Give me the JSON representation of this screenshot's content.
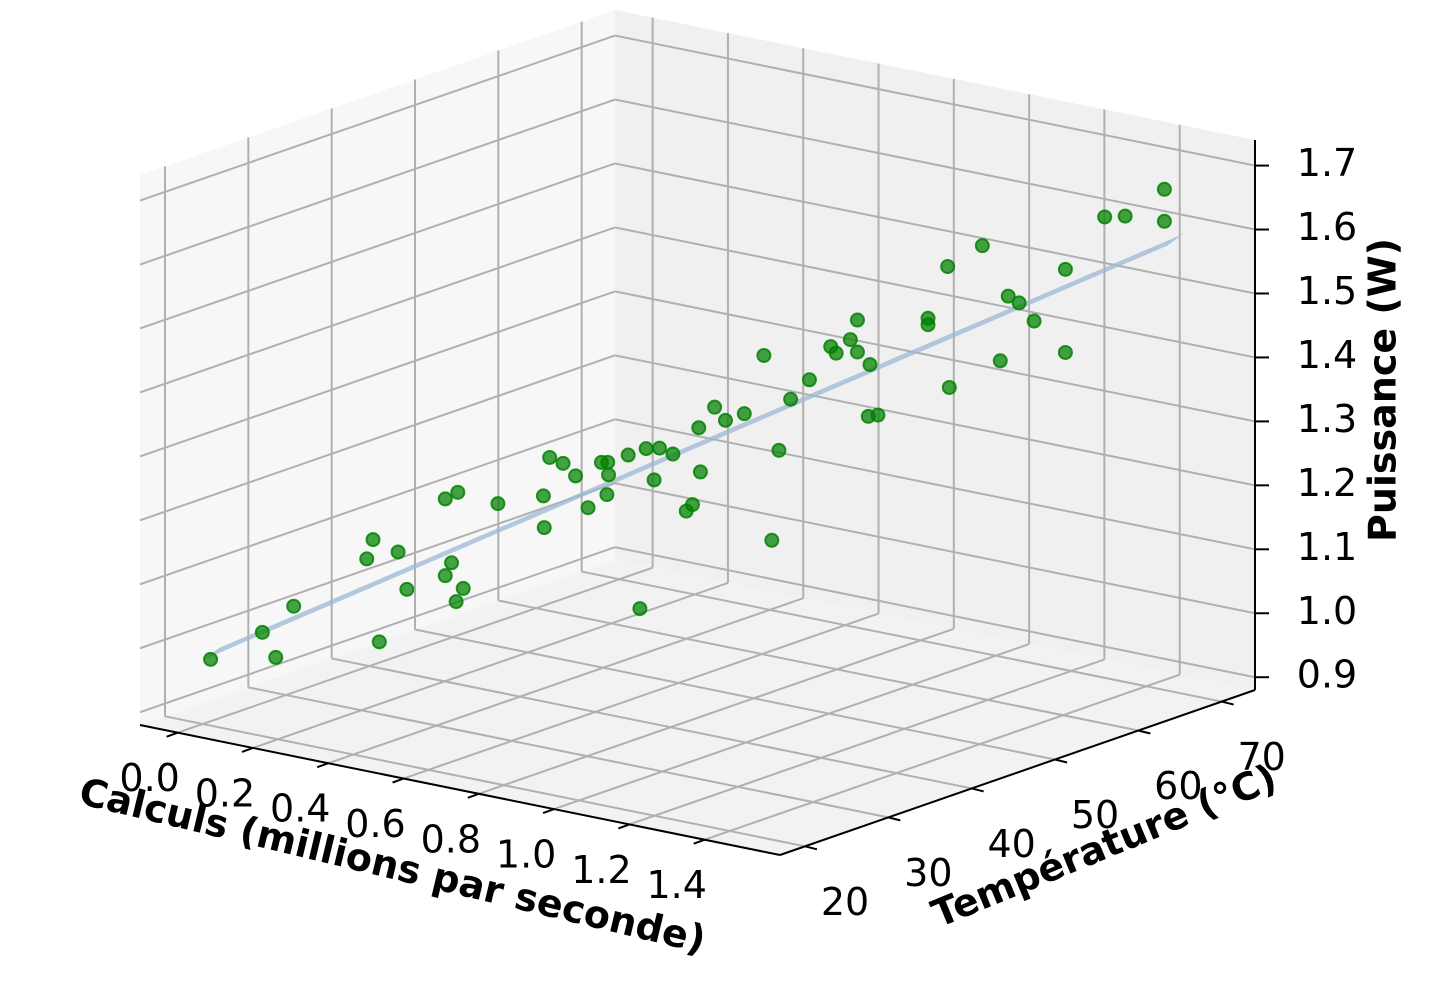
{
  "chart_data": {
    "type": "scatter3d",
    "xlabel": "Calculs (millions par seconde)",
    "ylabel": "Température (°C)",
    "zlabel": "Puissance (W)",
    "color": "#008000",
    "surface_color": "#9db8d4",
    "grid": true,
    "xlim": [
      -0.1,
      1.6
    ],
    "ylim": [
      17,
      74
    ],
    "zlim": [
      0.88,
      1.74
    ],
    "xticks": [
      {
        "value": 0,
        "label": "0.0"
      },
      0.2,
      0.4,
      0.6,
      0.8,
      {
        "value": 1,
        "label": "1.0"
      },
      1.2,
      1.4
    ],
    "yticks": [
      20,
      30,
      40,
      50,
      60,
      70
    ],
    "zticks": [
      0.9,
      {
        "value": 1,
        "label": "1.0"
      },
      1.1,
      1.2,
      1.3,
      1.4,
      1.5,
      1.6,
      1.7
    ],
    "x": [
      0.01,
      0.09,
      0.11,
      0.14,
      0.25,
      0.26,
      0.27,
      0.3,
      0.31,
      0.37,
      0.39,
      0.37,
      0.38,
      0.39,
      0.4,
      0.45,
      0.52,
      0.52,
      0.53,
      0.55,
      0.57,
      0.59,
      0.61,
      0.62,
      0.62,
      0.62,
      0.65,
      0.67,
      0.68,
      0.69,
      0.7,
      0.72,
      0.74,
      0.75,
      0.76,
      0.76,
      0.78,
      0.8,
      0.83,
      0.86,
      0.87,
      0.88,
      0.9,
      0.93,
      0.96,
      0.97,
      0.99,
      1.0,
      1.0,
      1.02,
      1.02,
      1.03,
      1.11,
      1.11,
      1.14,
      1.14,
      1.19,
      1.22,
      1.23,
      1.25,
      1.27,
      1.32,
      1.32,
      1.38,
      1.41,
      1.47,
      1.47
    ],
    "y": [
      20.5,
      23.1,
      23.8,
      24.6,
      28.4,
      28.7,
      29.0,
      29.9,
      30.5,
      32.4,
      33.0,
      32.4,
      32.7,
      32.8,
      33.2,
      35.1,
      37.4,
      37.5,
      37.7,
      38.4,
      39.0,
      39.6,
      40.3,
      40.5,
      40.6,
      40.7,
      41.7,
      42.2,
      42.5,
      43.0,
      43.2,
      43.9,
      44.6,
      44.9,
      45.2,
      45.4,
      46.2,
      46.6,
      47.5,
      48.5,
      49.0,
      49.4,
      49.9,
      50.8,
      52.0,
      52.2,
      53.0,
      53.4,
      53.4,
      53.8,
      54.0,
      54.5,
      56.9,
      56.9,
      57.9,
      58.1,
      59.8,
      60.6,
      61.1,
      61.5,
      62.4,
      63.9,
      63.9,
      65.9,
      67.0,
      69.0,
      69.0
    ],
    "z": [
      0.98,
      1.02,
      0.98,
      1.06,
      1.13,
      1.16,
      1.0,
      1.14,
      1.08,
      1.22,
      1.23,
      1.1,
      1.12,
      1.06,
      1.08,
      1.21,
      1.22,
      1.17,
      1.28,
      1.27,
      1.25,
      1.2,
      1.27,
      1.22,
      1.27,
      1.25,
      1.28,
      1.04,
      1.29,
      1.24,
      1.29,
      1.28,
      1.19,
      1.2,
      1.32,
      1.25,
      1.35,
      1.33,
      1.34,
      1.43,
      1.14,
      1.28,
      1.36,
      1.39,
      1.44,
      1.43,
      1.45,
      1.48,
      1.43,
      1.33,
      1.41,
      1.33,
      1.48,
      1.47,
      1.56,
      1.37,
      1.59,
      1.41,
      1.51,
      1.5,
      1.47,
      1.55,
      1.42,
      1.63,
      1.63,
      1.67,
      1.62
    ],
    "surface": {
      "x": [
        0,
        0,
        1.5,
        1.5
      ],
      "y": [
        20,
        22,
        70,
        68
      ],
      "z": [
        0.98,
        0.99,
        1.6,
        1.59
      ]
    }
  }
}
